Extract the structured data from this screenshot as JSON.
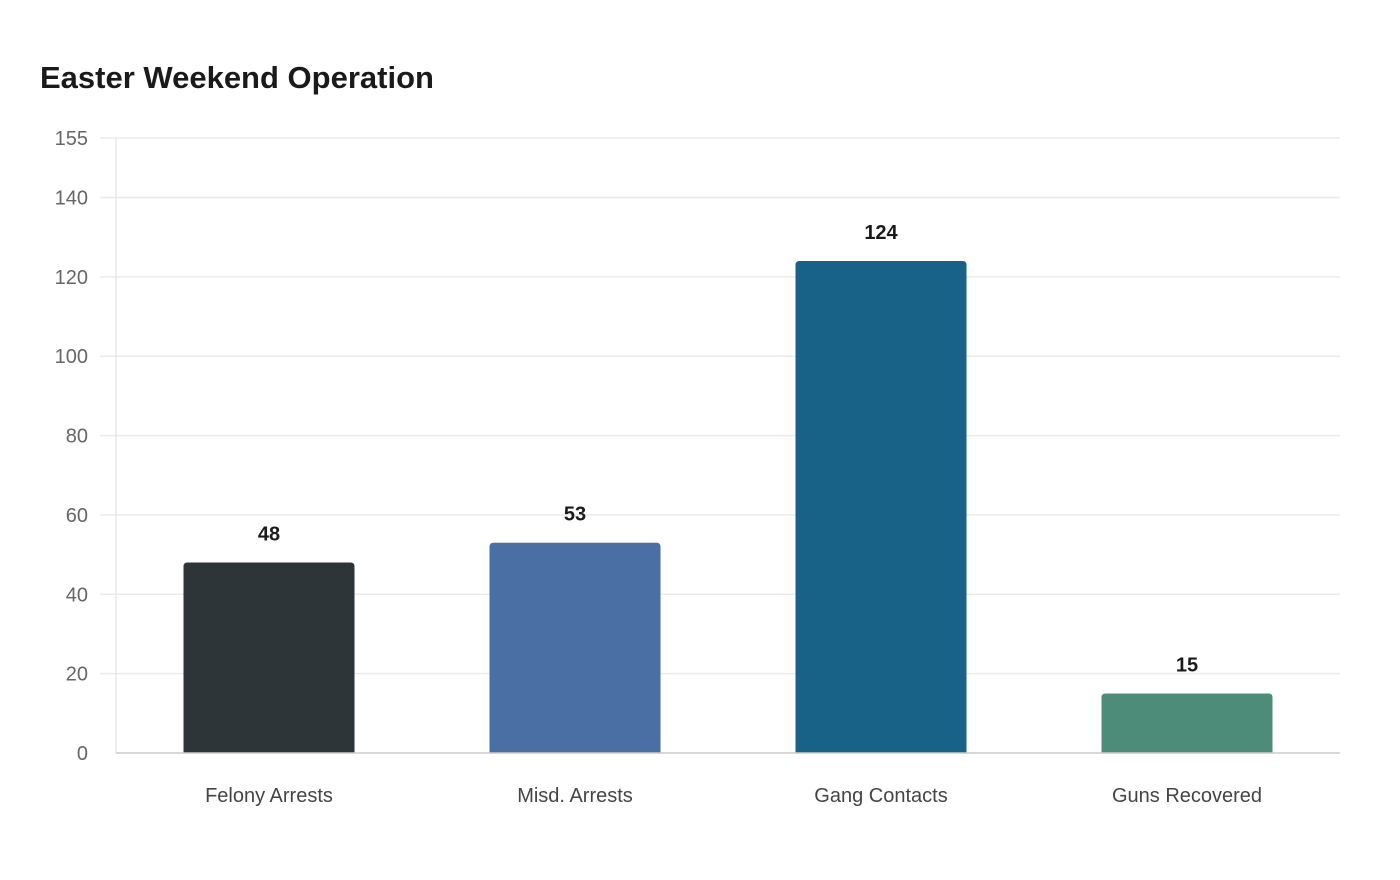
{
  "chart_data": {
    "type": "bar",
    "title": "Easter Weekend Operation",
    "xlabel": "",
    "ylabel": "",
    "categories": [
      "Felony Arrests",
      "Misd. Arrests",
      "Gang Contacts",
      "Guns Recovered"
    ],
    "values": [
      48,
      53,
      124,
      15
    ],
    "colors": [
      "#2e3538",
      "#4a6fa5",
      "#186288",
      "#4e8c7a"
    ],
    "ylim": [
      0,
      155
    ],
    "yticks": [
      0,
      20,
      40,
      60,
      80,
      100,
      120,
      140,
      155
    ],
    "grid": true,
    "data_labels": true
  }
}
